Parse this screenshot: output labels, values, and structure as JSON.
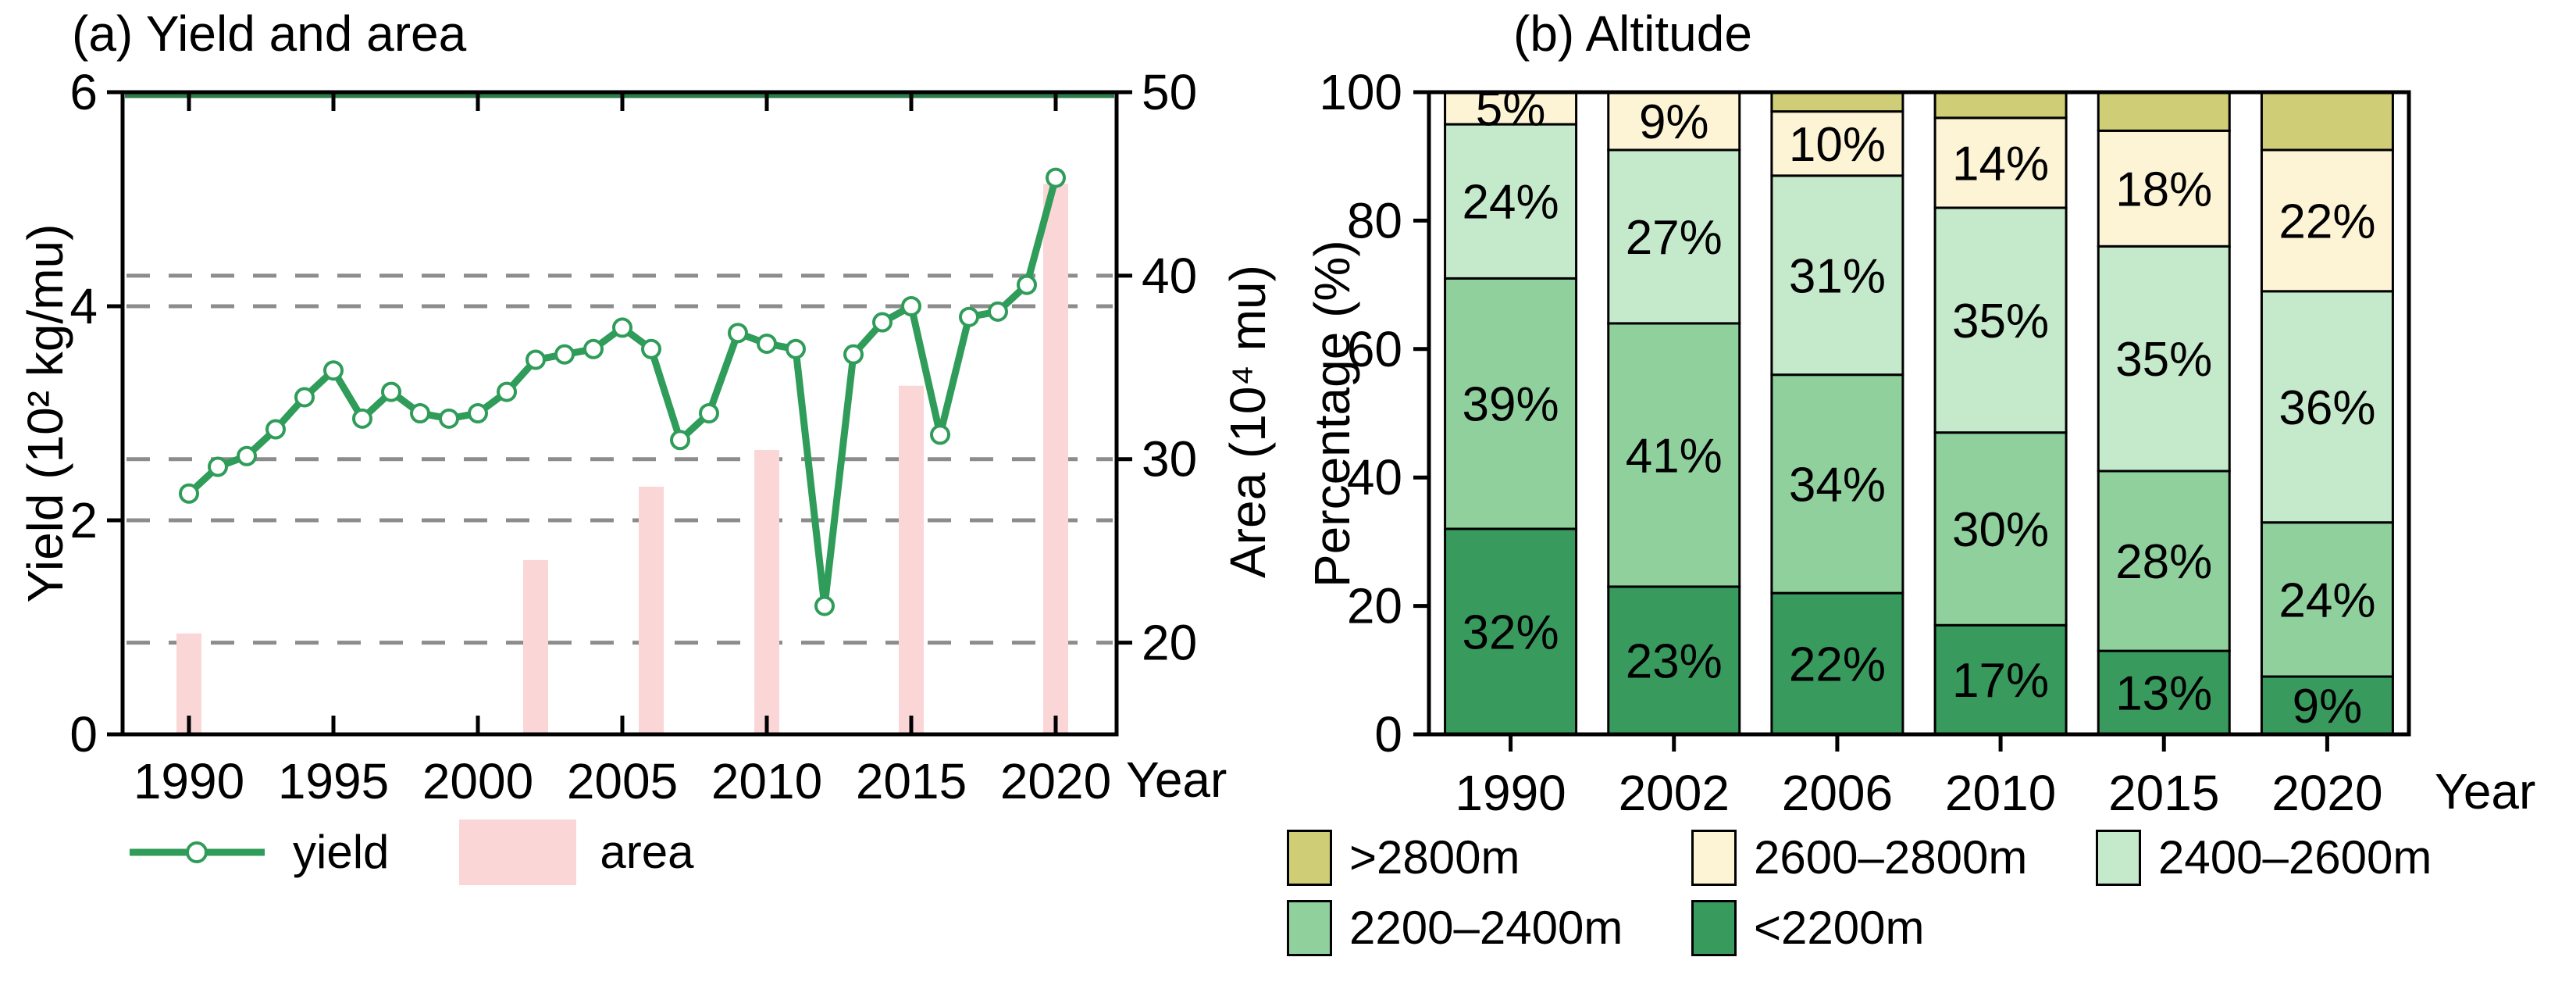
{
  "chart_data": [
    {
      "type": "line+bar",
      "panel": "a",
      "title": "(a) Yield and area",
      "xlabel": "Year",
      "ylabel_left": "Yield (10² kg/mu)",
      "ylabel_right": "Area (10⁴ mu)",
      "x_range": [
        1990,
        2020
      ],
      "xticks": [
        1990,
        1995,
        2000,
        2005,
        2010,
        2015,
        2020
      ],
      "ylim_left": [
        0,
        6
      ],
      "yticks_left": [
        0,
        2,
        4,
        6
      ],
      "ylim_right": [
        15,
        50
      ],
      "yticks_right": [
        20,
        30,
        40,
        50
      ],
      "gridlines": {
        "left_values": [
          2,
          4
        ],
        "right_values": [
          20,
          30,
          40
        ],
        "style": "dashed",
        "color": "#8c8c8c"
      },
      "series": [
        {
          "name": "yield",
          "type": "line",
          "axis": "left",
          "color": "#2f9c59",
          "marker": "open-circle",
          "x": [
            1990,
            1991,
            1992,
            1993,
            1994,
            1995,
            1996,
            1997,
            1998,
            1999,
            2000,
            2001,
            2002,
            2003,
            2004,
            2005,
            2006,
            2007,
            2008,
            2009,
            2010,
            2011,
            2012,
            2013,
            2014,
            2015,
            2016,
            2017,
            2018,
            2019,
            2020
          ],
          "values": [
            2.25,
            2.5,
            2.6,
            2.85,
            3.15,
            3.4,
            2.95,
            3.2,
            3.0,
            2.95,
            3.0,
            3.2,
            3.5,
            3.55,
            3.6,
            3.8,
            3.6,
            2.75,
            3.0,
            3.75,
            3.65,
            3.6,
            1.2,
            3.55,
            3.85,
            4.0,
            2.8,
            3.9,
            3.95,
            4.2,
            5.2
          ]
        },
        {
          "name": "area",
          "type": "bar",
          "axis": "right",
          "color": "#fbd6d6",
          "x": [
            1990,
            2002,
            2006,
            2010,
            2015,
            2020
          ],
          "values": [
            20.5,
            24.5,
            28.5,
            30.5,
            34,
            45
          ]
        }
      ]
    },
    {
      "type": "stacked-bar",
      "panel": "b",
      "title": "(b) Altitude",
      "xlabel": "Year",
      "ylabel": "Percentage (%)",
      "categories": [
        "1990",
        "2002",
        "2006",
        "2010",
        "2015",
        "2020"
      ],
      "ylim": [
        0,
        100
      ],
      "yticks": [
        0,
        20,
        40,
        60,
        80,
        100
      ],
      "series": [
        {
          "name": "<2200m",
          "color": "#399a5e",
          "labeled": true,
          "values": [
            32,
            23,
            22,
            17,
            13,
            9
          ]
        },
        {
          "name": "2200–2400m",
          "color": "#8fd09d",
          "labeled": true,
          "values": [
            39,
            41,
            34,
            30,
            28,
            24
          ]
        },
        {
          "name": "2400–2600m",
          "color": "#c5e9cb",
          "labeled": true,
          "values": [
            24,
            27,
            31,
            35,
            35,
            36
          ]
        },
        {
          "name": "2600–2800m",
          "color": "#fdf3d5",
          "labeled": true,
          "values": [
            5,
            9,
            10,
            14,
            18,
            22
          ]
        },
        {
          "name": ">2800m",
          "color": "#cfce76",
          "labeled": false,
          "values": [
            0,
            0,
            3,
            4,
            6,
            9
          ]
        }
      ]
    }
  ]
}
